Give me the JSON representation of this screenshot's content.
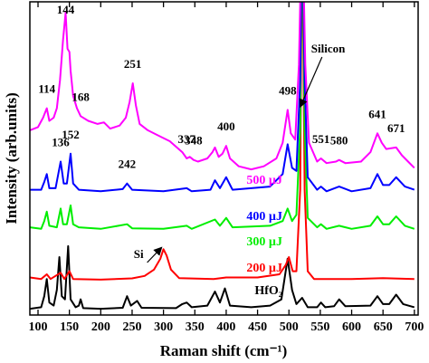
{
  "chart_data": {
    "type": "line",
    "xlabel": "Raman shift (cm⁻¹)",
    "ylabel": "Intensity (arb.units)",
    "xlim": [
      87,
      706
    ],
    "xticks": [
      100,
      150,
      200,
      250,
      300,
      350,
      400,
      450,
      500,
      550,
      600,
      650,
      700
    ],
    "ylim": [
      0,
      100
    ],
    "series": [
      {
        "name": "HfO₂",
        "color": "#000000",
        "x": [
          87,
          105,
          110,
          114,
          118,
          125,
          130,
          134,
          138,
          143,
          148,
          152,
          160,
          165,
          168,
          172,
          200,
          235,
          242,
          248,
          258,
          265,
          320,
          330,
          337,
          345,
          370,
          382,
          390,
          398,
          406,
          440,
          470,
          488,
          498,
          505,
          512,
          521,
          530,
          545,
          551,
          558,
          572,
          580,
          590,
          630,
          641,
          650,
          660,
          671,
          682,
          700
        ],
        "values": [
          2,
          2.5,
          6,
          11.5,
          4,
          3,
          8,
          18.5,
          6,
          5,
          22,
          5,
          2.5,
          3,
          5,
          2.2,
          2,
          2.3,
          6,
          3,
          4.5,
          2.3,
          2.2,
          3.5,
          4,
          2.5,
          3,
          7.5,
          4,
          8.5,
          3,
          2.5,
          3,
          5,
          18,
          8,
          3.5,
          5.5,
          2.5,
          2.5,
          4,
          2.5,
          2.8,
          5,
          2.8,
          3,
          6,
          3.5,
          3.5,
          6.5,
          3.5,
          2.5
        ],
        "peak_labels": []
      },
      {
        "name": "200 µJ",
        "color": "#ff0000",
        "x": [
          87,
          105,
          114,
          120,
          136,
          142,
          150,
          156,
          200,
          250,
          270,
          285,
          295,
          300,
          305,
          312,
          325,
          380,
          400,
          450,
          485,
          495,
          500,
          506,
          512,
          518,
          521,
          525,
          530,
          540,
          600,
          650,
          700
        ],
        "values": [
          12,
          11.5,
          13,
          11.5,
          13.5,
          11.5,
          14,
          11.5,
          11.3,
          11.7,
          12.5,
          14.5,
          18,
          21,
          19,
          14.5,
          11.8,
          11.5,
          12,
          12,
          13,
          16,
          18.5,
          14,
          14,
          40,
          130,
          40,
          14,
          11.5,
          11.5,
          11.8,
          11.5
        ],
        "peak_labels": []
      },
      {
        "name": "300 µJ",
        "color": "#00ee00",
        "x": [
          87,
          105,
          110,
          114,
          118,
          130,
          136,
          140,
          146,
          152,
          156,
          165,
          200,
          242,
          250,
          300,
          337,
          345,
          382,
          390,
          400,
          410,
          470,
          490,
          498,
          505,
          512,
          518,
          521,
          525,
          530,
          545,
          551,
          560,
          580,
          600,
          630,
          641,
          650,
          660,
          671,
          685,
          700
        ],
        "values": [
          28,
          27.5,
          30,
          33,
          28.5,
          28,
          34,
          29,
          29,
          35,
          29,
          28,
          27.5,
          29,
          27.7,
          27.5,
          28.5,
          27.5,
          30.5,
          28.5,
          31,
          28,
          28.5,
          30,
          34,
          30,
          32,
          60,
          130,
          60,
          31,
          28,
          29,
          27.5,
          28.5,
          27.5,
          28.5,
          31.5,
          29,
          29,
          31.5,
          28.5,
          27.5
        ],
        "peak_labels": []
      },
      {
        "name": "400 µJ",
        "color": "#0000ff",
        "x": [
          87,
          105,
          110,
          114,
          118,
          128,
          136,
          141,
          146,
          152,
          156,
          165,
          200,
          235,
          242,
          250,
          300,
          337,
          345,
          375,
          382,
          390,
          400,
          410,
          470,
          490,
          498,
          505,
          512,
          518,
          521,
          525,
          530,
          545,
          551,
          560,
          580,
          600,
          630,
          641,
          650,
          660,
          671,
          685,
          700
        ],
        "values": [
          40,
          40,
          42.5,
          45,
          40.5,
          40.5,
          49,
          42,
          42,
          51.5,
          42,
          40,
          39.5,
          40.2,
          42,
          40,
          39.5,
          40.5,
          39.5,
          40,
          43,
          40.5,
          44,
          40,
          41,
          45,
          54.5,
          47,
          46,
          75,
          130,
          75,
          44,
          40,
          41,
          39.5,
          41,
          39.5,
          40.5,
          45,
          41.5,
          41.5,
          44,
          41,
          40
        ],
        "peak_labels": [
          {
            "value": 136,
            "label": "136"
          },
          {
            "value": 152,
            "label": "152"
          },
          {
            "value": 242,
            "label": "242"
          }
        ]
      },
      {
        "name": "500 µJ",
        "color": "#ff00ff",
        "x": [
          87,
          100,
          108,
          114,
          118,
          125,
          130,
          135,
          140,
          144,
          147,
          150,
          152,
          156,
          162,
          168,
          180,
          195,
          205,
          215,
          230,
          240,
          246,
          251,
          256,
          262,
          275,
          290,
          310,
          330,
          337,
          342,
          348,
          355,
          370,
          378,
          382,
          388,
          394,
          400,
          406,
          420,
          440,
          460,
          480,
          490,
          498,
          503,
          510,
          516,
          521,
          526,
          532,
          545,
          551,
          560,
          575,
          580,
          590,
          615,
          630,
          641,
          648,
          655,
          671,
          680,
          690,
          700
        ],
        "values": [
          59,
          60,
          63,
          66,
          62,
          63,
          66,
          75,
          88,
          96.5,
          85,
          84,
          78,
          70,
          66,
          63.5,
          62,
          61,
          61.5,
          59.5,
          60.5,
          63,
          68,
          74,
          67,
          61,
          59,
          57.5,
          55.5,
          52,
          50,
          50.5,
          49.5,
          49,
          50,
          52,
          53.5,
          50.5,
          51.5,
          54,
          50,
          47.5,
          46.5,
          47.5,
          50,
          55,
          65.5,
          58,
          56,
          80,
          130,
          80,
          55,
          49,
          50,
          48.5,
          49,
          49.5,
          48.5,
          49,
          52,
          58,
          55,
          53,
          53.5,
          51,
          49,
          47
        ],
        "peak_labels": [
          {
            "value": 114,
            "label": "114"
          },
          {
            "value": 144,
            "label": "144"
          },
          {
            "value": 168,
            "label": "168"
          },
          {
            "value": 251,
            "label": "251"
          },
          {
            "value": 337,
            "label": "337"
          },
          {
            "value": 348,
            "label": "348"
          },
          {
            "value": 400,
            "label": "400"
          },
          {
            "value": 498,
            "label": "498"
          },
          {
            "value": 551,
            "label": "551"
          },
          {
            "value": 580,
            "label": "580"
          },
          {
            "value": 641,
            "label": "641"
          },
          {
            "value": 671,
            "label": "671"
          }
        ]
      }
    ],
    "annotations": [
      {
        "x": 300,
        "label": "Si"
      },
      {
        "x": 521,
        "label": "Silicon"
      }
    ]
  }
}
